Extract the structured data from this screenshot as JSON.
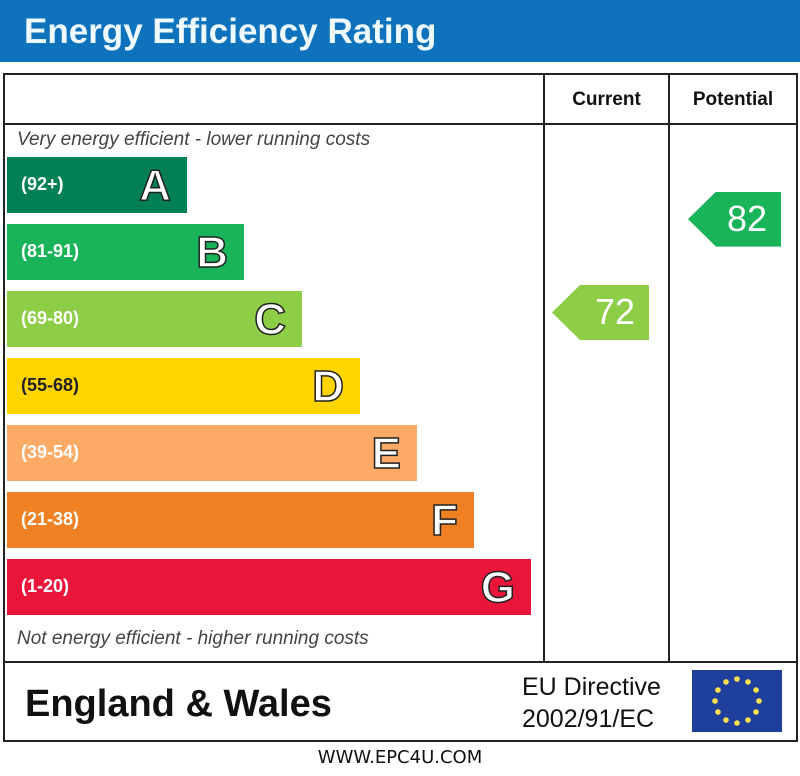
{
  "title": "Energy Efficiency Rating",
  "columns": {
    "current": "Current",
    "potential": "Potential"
  },
  "top_note": "Very energy efficient - lower running costs",
  "bottom_note": "Not energy efficient - higher running costs",
  "region": "England & Wales",
  "directive": {
    "line1": "EU Directive",
    "line2": "2002/91/EC"
  },
  "website": "WWW.EPC4U.COM",
  "colors": {
    "header": "#0f72bd",
    "A": "#008054",
    "B": "#19b459",
    "C": "#8dce46",
    "D": "#ffd500",
    "E": "#fcaa65",
    "F": "#ef8023",
    "G": "#e9153b"
  },
  "chart_data": {
    "type": "bar",
    "bands": [
      {
        "letter": "A",
        "range": "(92+)",
        "color": "#008054"
      },
      {
        "letter": "B",
        "range": "(81-91)",
        "color": "#19b459"
      },
      {
        "letter": "C",
        "range": "(69-80)",
        "color": "#8dce46"
      },
      {
        "letter": "D",
        "range": "(55-68)",
        "color": "#ffd500"
      },
      {
        "letter": "E",
        "range": "(39-54)",
        "color": "#fcaa65"
      },
      {
        "letter": "F",
        "range": "(21-38)",
        "color": "#ef8023"
      },
      {
        "letter": "G",
        "range": "(1-20)",
        "color": "#e9153b"
      }
    ],
    "current": {
      "value": "72",
      "band": "C"
    },
    "potential": {
      "value": "82",
      "band": "B"
    }
  }
}
